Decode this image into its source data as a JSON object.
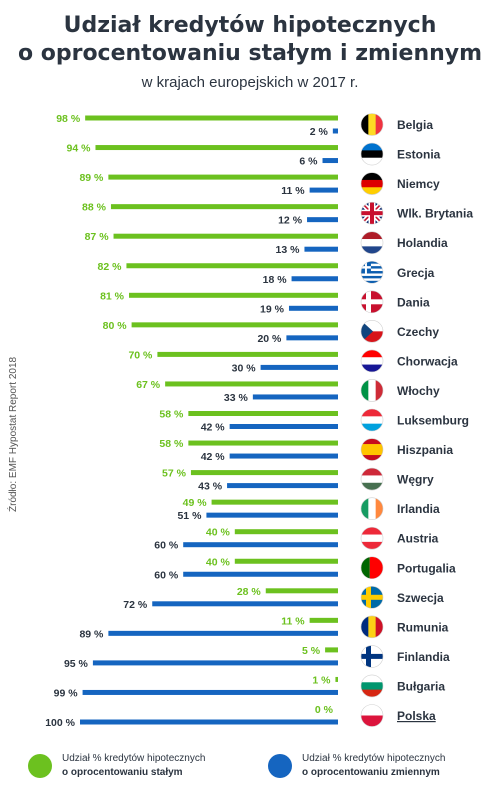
{
  "header": {
    "title_line1": "Udział kredytów hipotecznych",
    "title_line2": "o oprocentowaniu stałym i zmiennym",
    "subtitle": "w krajach europejskich w 2017 r."
  },
  "source": "Źródło: EMF Hypostat Report 2018",
  "legend": {
    "fixed_line1": "Udział % kredytów hipotecznych",
    "fixed_line2": "o oprocentowaniu stałym",
    "variable_line1": "Udział % kredytów hipotecznych",
    "variable_line2": "o oprocentowaniu zmiennym"
  },
  "colors": {
    "fixed": "#6cc11f",
    "variable": "#1565c0",
    "text": "#2b3440"
  },
  "chart_data": {
    "type": "bar",
    "orientation": "horizontal",
    "value_suffix": " %",
    "categories": [
      "Belgia",
      "Estonia",
      "Niemcy",
      "Wlk. Brytania",
      "Holandia",
      "Grecja",
      "Dania",
      "Czechy",
      "Chorwacja",
      "Włochy",
      "Luksemburg",
      "Hiszpania",
      "Węgry",
      "Irlandia",
      "Austria",
      "Portugalia",
      "Szwecja",
      "Rumunia",
      "Finlandia",
      "Bułgaria",
      "Polska"
    ],
    "flags": [
      "belgium-flag",
      "estonia-flag",
      "germany-flag",
      "uk-flag",
      "netherlands-flag",
      "greece-flag",
      "denmark-flag",
      "czechia-flag",
      "croatia-flag",
      "italy-flag",
      "luxembourg-flag",
      "spain-flag",
      "hungary-flag",
      "ireland-flag",
      "austria-flag",
      "portugal-flag",
      "sweden-flag",
      "romania-flag",
      "finland-flag",
      "bulgaria-flag",
      "poland-flag"
    ],
    "series": [
      {
        "name": "Udział % kredytów hipotecznych o oprocentowaniu stałym",
        "values": [
          98,
          94,
          89,
          88,
          87,
          82,
          81,
          80,
          70,
          67,
          58,
          58,
          57,
          49,
          40,
          40,
          28,
          11,
          5,
          1,
          0
        ]
      },
      {
        "name": "Udział % kredytów hipotecznych o oprocentowaniu zmiennym",
        "values": [
          2,
          6,
          11,
          12,
          13,
          18,
          19,
          20,
          30,
          33,
          42,
          42,
          43,
          51,
          60,
          60,
          72,
          89,
          95,
          99,
          100
        ]
      }
    ],
    "xlim": [
      0,
      100
    ]
  }
}
